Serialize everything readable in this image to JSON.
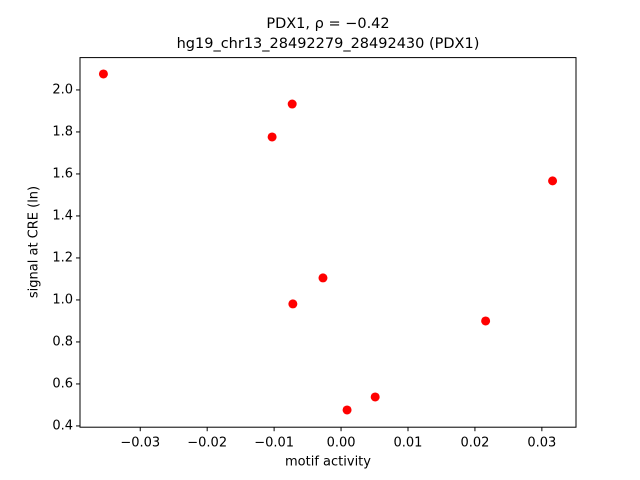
{
  "chart_data": {
    "type": "scatter",
    "title": "PDX1, ρ = −0.42",
    "subtitle": "hg19_chr13_28492279_28492430 (PDX1)",
    "x_label": "motif activity",
    "y_label": "signal at CRE (ln)",
    "color": "#ff0000",
    "x": [
      -0.0355,
      -0.0073,
      -0.0103,
      0.0316,
      -0.0027,
      -0.0072,
      0.0216,
      0.0051,
      0.0009
    ],
    "values": [
      2.076,
      1.933,
      1.776,
      1.567,
      1.105,
      0.981,
      0.9,
      0.538,
      0.476
    ],
    "xlim": [
      -0.039,
      0.0351
    ],
    "ylim": [
      0.394,
      2.154
    ],
    "xticks": [
      {
        "value": -0.03,
        "label": "−0.03"
      },
      {
        "value": -0.02,
        "label": "−0.02"
      },
      {
        "value": -0.01,
        "label": "−0.01"
      },
      {
        "value": 0,
        "label": "0.00"
      },
      0.01,
      0.02,
      0.03
    ],
    "yticks": [
      0.4,
      0.6,
      0.8,
      {
        "value": 1,
        "label": "1.0"
      },
      1.2,
      1.4,
      1.6,
      1.8,
      {
        "value": 2,
        "label": "2.0"
      }
    ]
  }
}
